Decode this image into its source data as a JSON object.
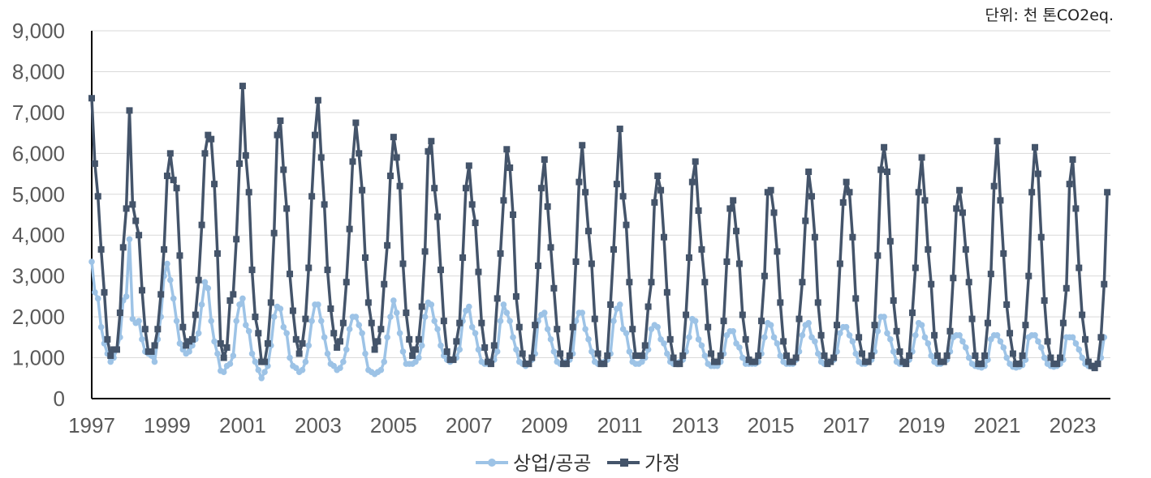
{
  "chart_data": {
    "type": "line",
    "unit_note": "단위: 천 톤CO2eq.",
    "xlim": [
      1997,
      2024
    ],
    "ylim": [
      0,
      9000
    ],
    "x_ticks": [
      "1997",
      "1999",
      "2001",
      "2003",
      "2005",
      "2007",
      "2009",
      "2011",
      "2013",
      "2015",
      "2017",
      "2019",
      "2021",
      "2023"
    ],
    "y_ticks": [
      "0",
      "1,000",
      "2,000",
      "3,000",
      "4,000",
      "5,000",
      "6,000",
      "7,000",
      "8,000",
      "9,000"
    ],
    "legend": "bottom-center",
    "grid": true,
    "series": [
      {
        "name": "상업/공공",
        "color": "#9DC3E6",
        "marker": "circle",
        "annual": [
          [
            3350,
            2600,
            2450,
            1750,
            1350,
            1100,
            900,
            1000,
            1200,
            1500,
            2400,
            2500
          ],
          [
            3900,
            1950,
            1850,
            1900,
            1450,
            1150,
            1100,
            1050,
            900,
            1450,
            2000,
            3000
          ],
          [
            3300,
            2900,
            2450,
            1900,
            1350,
            1200,
            1100,
            1150,
            1300,
            1450,
            1600,
            2300
          ],
          [
            2850,
            2700,
            1900,
            1400,
            1100,
            680,
            650,
            800,
            850,
            1050,
            1900,
            2300
          ],
          [
            2450,
            1800,
            1650,
            1100,
            900,
            700,
            500,
            650,
            800,
            1300,
            2000,
            2250
          ],
          [
            2200,
            1750,
            1600,
            1000,
            800,
            750,
            650,
            700,
            900,
            1300,
            1900,
            2300
          ],
          [
            2300,
            1900,
            1500,
            1100,
            850,
            800,
            700,
            750,
            900,
            1200,
            1700,
            2000
          ],
          [
            2000,
            1800,
            1600,
            1100,
            700,
            650,
            600,
            650,
            700,
            900,
            1500,
            2000
          ],
          [
            2400,
            2100,
            1600,
            1150,
            850,
            850,
            850,
            900,
            1000,
            1300,
            2000,
            2350
          ],
          [
            2300,
            1900,
            1700,
            1300,
            1050,
            950,
            900,
            950,
            1000,
            1200,
            1900,
            2150
          ],
          [
            2250,
            1750,
            1600,
            1200,
            900,
            850,
            850,
            900,
            950,
            1150,
            1900,
            2300
          ],
          [
            2100,
            1900,
            1500,
            1200,
            900,
            850,
            800,
            850,
            950,
            1100,
            1900,
            2050
          ],
          [
            2100,
            1700,
            1450,
            1150,
            900,
            850,
            850,
            900,
            950,
            1100,
            1900,
            2100
          ],
          [
            2100,
            1700,
            1450,
            1150,
            900,
            850,
            850,
            900,
            950,
            1100,
            1900,
            2200
          ],
          [
            2300,
            1700,
            1600,
            1150,
            900,
            850,
            850,
            900,
            1000,
            1200,
            1700,
            1800
          ],
          [
            1750,
            1450,
            1350,
            1100,
            900,
            850,
            850,
            900,
            950,
            1150,
            1500,
            1950
          ],
          [
            1900,
            1450,
            1300,
            1050,
            850,
            800,
            800,
            800,
            900,
            1100,
            1550,
            1650
          ],
          [
            1650,
            1350,
            1250,
            1000,
            850,
            850,
            850,
            850,
            900,
            1100,
            1500,
            1850
          ],
          [
            1800,
            1500,
            1350,
            1050,
            900,
            850,
            850,
            850,
            950,
            1150,
            1550,
            1800
          ],
          [
            1850,
            1500,
            1400,
            1100,
            900,
            850,
            850,
            900,
            950,
            1150,
            1600,
            1750
          ],
          [
            1750,
            1550,
            1400,
            1100,
            900,
            850,
            850,
            900,
            950,
            1150,
            1650,
            2000
          ],
          [
            2000,
            1600,
            1450,
            1150,
            900,
            850,
            850,
            900,
            950,
            1150,
            1550,
            1850
          ],
          [
            1800,
            1500,
            1350,
            1050,
            900,
            850,
            850,
            900,
            950,
            1150,
            1500,
            1550
          ],
          [
            1550,
            1400,
            1250,
            1000,
            850,
            800,
            780,
            760,
            800,
            950,
            1450,
            1550
          ],
          [
            1550,
            1400,
            1250,
            1000,
            850,
            780,
            760,
            780,
            820,
            950,
            1500,
            1550
          ],
          [
            1550,
            1400,
            1250,
            1000,
            850,
            800,
            780,
            800,
            850,
            950,
            1500,
            1500
          ],
          [
            1500,
            1350,
            1200,
            1000,
            850,
            800,
            780,
            800,
            850,
            1000,
            1500
          ]
        ]
      },
      {
        "name": "가정",
        "color": "#44546A",
        "marker": "square",
        "annual": [
          [
            7350,
            5750,
            4950,
            3650,
            2600,
            1450,
            1050,
            1200,
            1200,
            2100,
            3700,
            4650
          ],
          [
            7050,
            4750,
            4350,
            4000,
            2650,
            1700,
            1150,
            1150,
            1300,
            1700,
            2550,
            3650
          ],
          [
            5450,
            6000,
            5350,
            5150,
            3500,
            1750,
            1300,
            1400,
            1450,
            2050,
            2900,
            4250
          ],
          [
            6000,
            6450,
            6350,
            5250,
            3550,
            1350,
            1000,
            1250,
            2400,
            2550,
            3900,
            5750
          ],
          [
            7650,
            5950,
            5050,
            3150,
            2000,
            1600,
            900,
            900,
            1350,
            2350,
            4050,
            6450
          ],
          [
            6800,
            5600,
            4650,
            3050,
            2150,
            1450,
            1100,
            1350,
            1950,
            3200,
            4950,
            6450
          ],
          [
            7300,
            5900,
            4750,
            3150,
            2200,
            1600,
            1250,
            1400,
            1850,
            2850,
            4150,
            5800
          ],
          [
            6750,
            6000,
            5100,
            3450,
            2350,
            1850,
            1200,
            1400,
            1700,
            2800,
            3750,
            5450
          ],
          [
            6400,
            5900,
            5200,
            3300,
            2100,
            1450,
            1050,
            1200,
            1450,
            2250,
            3600,
            6050
          ],
          [
            6300,
            5150,
            4450,
            3150,
            1900,
            1150,
            950,
            950,
            1400,
            1850,
            3450,
            5150
          ],
          [
            5700,
            4750,
            4300,
            3100,
            1850,
            1250,
            900,
            850,
            1300,
            2450,
            3550,
            4850
          ],
          [
            6100,
            5650,
            4500,
            2500,
            1750,
            1100,
            850,
            850,
            1000,
            1800,
            3250,
            5150
          ],
          [
            5850,
            4700,
            3700,
            2700,
            1700,
            1100,
            850,
            850,
            1050,
            1750,
            3350,
            5300
          ],
          [
            6200,
            5050,
            4100,
            3300,
            1950,
            1100,
            850,
            850,
            1050,
            2300,
            3650,
            5250
          ],
          [
            6600,
            4950,
            4250,
            2850,
            1700,
            1050,
            1050,
            1050,
            1300,
            2250,
            2850,
            4800
          ],
          [
            5450,
            5100,
            3950,
            2600,
            1450,
            1000,
            850,
            850,
            1050,
            2050,
            3450,
            5300
          ],
          [
            5800,
            4600,
            3650,
            2850,
            1750,
            1100,
            900,
            900,
            1050,
            1900,
            3350,
            4650
          ],
          [
            4850,
            4100,
            3300,
            2050,
            1450,
            950,
            900,
            900,
            1050,
            1900,
            3000,
            5050
          ],
          [
            5100,
            4550,
            3600,
            2350,
            1400,
            1050,
            900,
            900,
            1000,
            1950,
            2850,
            4350
          ],
          [
            5550,
            4950,
            3950,
            2350,
            1550,
            1050,
            850,
            900,
            1000,
            1800,
            3300,
            4800
          ],
          [
            5300,
            5050,
            3950,
            2450,
            1500,
            1100,
            900,
            900,
            1050,
            1800,
            3500,
            5600
          ],
          [
            6150,
            5550,
            3850,
            2400,
            1650,
            1150,
            900,
            850,
            1050,
            2100,
            3200,
            5050
          ],
          [
            5900,
            4850,
            3650,
            2800,
            1550,
            1050,
            900,
            900,
            1050,
            1650,
            2950,
            4650
          ],
          [
            5100,
            4550,
            3650,
            2850,
            1950,
            1050,
            850,
            850,
            1050,
            1850,
            3050,
            5200
          ],
          [
            6300,
            4850,
            3550,
            2300,
            1600,
            1100,
            850,
            850,
            1050,
            1800,
            3000,
            5050
          ],
          [
            6150,
            5500,
            3950,
            2400,
            1400,
            1000,
            850,
            850,
            1000,
            1850,
            2700,
            5250
          ],
          [
            5850,
            4650,
            3200,
            2050,
            1450,
            900,
            800,
            750,
            850,
            1500,
            2800,
            5050
          ]
        ]
      }
    ]
  }
}
